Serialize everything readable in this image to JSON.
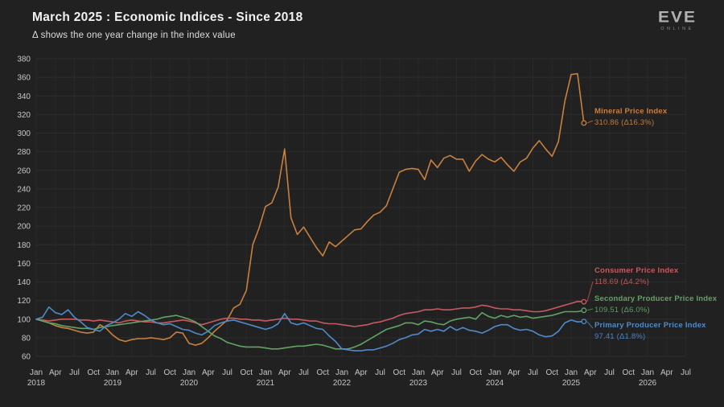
{
  "header": {
    "title": "March 2025 : Economic Indices - Since 2018",
    "subtitle": "Δ shows the one year change in the index value"
  },
  "logo": {
    "text": "EVE",
    "subtext": "ONLINE"
  },
  "chart_data": {
    "type": "line",
    "title": "March 2025 : Economic Indices - Since 2018",
    "subtitle": "Δ shows the one year change in the index value",
    "x_start_month": "Jan 2018",
    "x_last_data_month": "Mar 2025",
    "x_axis": {
      "quarters": [
        "Jan",
        "Apr",
        "Jul",
        "Oct"
      ],
      "years": [
        "2018",
        "2019",
        "2020",
        "2021",
        "2022",
        "2023",
        "2024",
        "2025",
        "2026"
      ],
      "last_tick": "Jul 2026",
      "num_ticks": 35
    },
    "y_axis": {
      "min": 60,
      "max": 380,
      "step": 20,
      "tick_labels": [
        "60",
        "80",
        "100",
        "120",
        "140",
        "160",
        "180",
        "200",
        "220",
        "240",
        "260",
        "280",
        "300",
        "320",
        "340",
        "360",
        "380"
      ]
    },
    "grid": true,
    "legend_position": "right-annotations",
    "series": [
      {
        "name": "Mineral Price Index",
        "color": "#c9803e",
        "end_value": 310.86,
        "end_label": "310.86 (Δ16.3%)",
        "delta_one_year": "16.3%",
        "values": [
          100,
          98,
          96,
          93,
          91,
          90,
          88,
          86,
          85,
          86,
          94,
          90,
          83,
          78,
          76,
          78,
          79,
          79,
          80,
          79,
          78,
          80,
          86,
          85,
          74,
          72,
          74,
          80,
          87,
          93,
          99,
          112,
          116,
          131,
          180,
          198,
          221,
          225,
          242,
          283,
          209,
          191,
          199,
          188,
          177,
          168,
          183,
          178,
          184,
          190,
          196,
          197,
          205,
          212,
          215,
          222,
          240,
          258,
          261,
          262,
          261,
          250,
          271,
          263,
          273,
          276,
          272,
          272,
          259,
          270,
          277,
          272,
          269,
          274,
          266,
          259,
          269,
          273,
          284,
          292,
          283,
          275,
          291,
          334,
          363,
          364,
          310.86
        ]
      },
      {
        "name": "Consumer Price Index",
        "color": "#c65a60",
        "end_value": 118.69,
        "end_label": "118.69 (Δ4.2%)",
        "delta_one_year": "4.2%",
        "values": [
          100,
          99,
          98,
          99,
          100,
          100,
          100,
          99,
          99,
          98,
          99,
          98,
          97,
          96,
          98,
          99,
          98,
          97,
          97,
          96,
          96,
          97,
          98,
          99,
          98,
          96,
          94,
          96,
          98,
          100,
          101,
          101,
          100,
          100,
          99,
          99,
          98,
          99,
          100,
          101,
          100,
          100,
          99,
          98,
          98,
          96,
          95,
          95,
          94,
          93,
          92,
          93,
          94,
          96,
          97,
          99,
          101,
          104,
          106,
          107,
          108,
          110,
          110,
          111,
          110,
          110,
          111,
          112,
          112,
          113,
          115,
          114,
          112,
          111,
          111,
          110,
          110,
          109,
          108,
          108,
          109,
          111,
          113,
          115,
          117,
          119,
          118.69
        ]
      },
      {
        "name": "Secondary Producer Price Index",
        "color": "#61a364",
        "end_value": 109.51,
        "end_label": "109.51 (Δ6.0%)",
        "delta_one_year": "6.0%",
        "values": [
          100,
          98,
          96,
          95,
          93,
          92,
          91,
          90,
          90,
          89,
          91,
          92,
          93,
          94,
          95,
          96,
          97,
          98,
          99,
          100,
          102,
          103,
          104,
          102,
          100,
          97,
          92,
          87,
          82,
          79,
          75,
          73,
          71,
          70,
          70,
          70,
          69,
          68,
          68,
          69,
          70,
          71,
          71,
          72,
          73,
          72,
          70,
          68,
          68,
          68,
          70,
          73,
          77,
          81,
          85,
          89,
          91,
          93,
          96,
          96,
          94,
          98,
          97,
          95,
          94,
          98,
          100,
          101,
          102,
          100,
          107,
          103,
          101,
          104,
          102,
          104,
          102,
          103,
          101,
          102,
          103,
          104,
          106,
          108,
          108,
          108,
          109.51
        ]
      },
      {
        "name": "Primary Producer Price Index",
        "color": "#4f8bca",
        "end_value": 97.41,
        "end_label": "97.41 (Δ1.8%)",
        "delta_one_year": "1.8%",
        "values": [
          100,
          102,
          113,
          107,
          105,
          110,
          102,
          97,
          91,
          89,
          87,
          93,
          96,
          100,
          106,
          103,
          108,
          104,
          99,
          96,
          94,
          95,
          92,
          89,
          88,
          85,
          83,
          87,
          93,
          96,
          98,
          99,
          97,
          95,
          93,
          91,
          89,
          91,
          95,
          106,
          96,
          94,
          96,
          93,
          90,
          89,
          82,
          76,
          68,
          67,
          66,
          66,
          67,
          67,
          69,
          71,
          74,
          78,
          80,
          83,
          84,
          89,
          87,
          89,
          87,
          92,
          88,
          91,
          88,
          87,
          85,
          88,
          92,
          94,
          94,
          90,
          88,
          89,
          87,
          83,
          81,
          82,
          87,
          96,
          99,
          97,
          97.41
        ]
      }
    ]
  }
}
